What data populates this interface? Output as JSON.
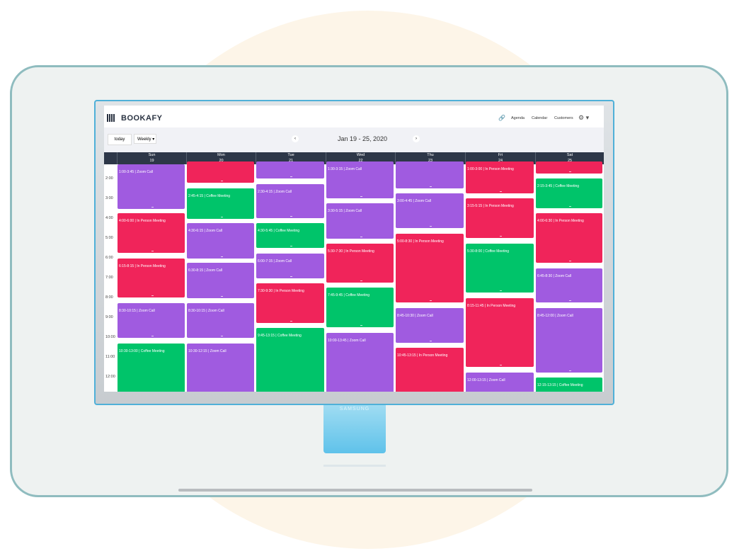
{
  "header": {
    "brand": "BOOKAFY",
    "nav": [
      "Agenda",
      "Calendar",
      "Customers"
    ]
  },
  "toolbar": {
    "today": "today",
    "view": "Weekly",
    "range": "Jan 19 - 25, 2020"
  },
  "days": [
    {
      "name": "Sun",
      "date": "19",
      "events": [
        "1:00-3:45 | Zoom Call",
        "4:00-6:00 | In Person Meeting",
        "6:15-8:15 | In Person Meeting",
        "8:30-10:15 | Zoom Call",
        "10:30-13:00 | Coffee Meeting"
      ]
    },
    {
      "name": "Mon",
      "date": "20",
      "events": [
        "2:45-4:15 | Coffee Meeting",
        "4:30-6:15 | Zoom Call",
        "6:30-8:15 | Zoom Call",
        "8:30-10:15 | Zoom Call",
        "10:30-12:15 | Zoom Call"
      ]
    },
    {
      "name": "Tue",
      "date": "21",
      "events": [
        "2:30-4:15 | Zoom Call",
        "4:30-5:45 | Coffee Meeting",
        "6:00-7:15 | Zoom Call",
        "7:30-9:30 | In Person Meeting",
        "9:45-13:15 | Coffee Meeting"
      ]
    },
    {
      "name": "Wed",
      "date": "22",
      "events": [
        "1:30-3:15 | Zoom Call",
        "3:30-5:15 | Zoom Call",
        "5:30-7:30 | In Person Meeting",
        "7:45-9:45 | Coffee Meeting",
        "10:00-13:45 | Zoom Call"
      ]
    },
    {
      "name": "Thu",
      "date": "23",
      "events": [
        "3:00-4:45 | Zoom Call",
        "5:00-8:30 | In Person Meeting",
        "8:45-10:30 | Zoom Call",
        "10:45-13:15 | In Person Meeting"
      ]
    },
    {
      "name": "Fri",
      "date": "24",
      "events": [
        "1:00-3:00 | In Person Meeting",
        "3:15-5:15 | In Person Meeting",
        "5:30-8:00 | Coffee Meeting",
        "8:15-11:45 | In Person Meeting",
        "12:00-13:15 | Zoom Call"
      ]
    },
    {
      "name": "Sat",
      "date": "25",
      "events": [
        "2:15-3:45 | Coffee Meeting",
        "4:00-6:30 | In Person Meeting",
        "6:45-8:30 | Zoom Call",
        "8:45-12:00 | Zoom Call",
        "12:15-13:15 | Coffee Meeting"
      ]
    }
  ],
  "times": [
    "2:00",
    "3:00",
    "4:00",
    "5:00",
    "6:00",
    "7:00",
    "8:00",
    "9:00",
    "10:00",
    "11:00",
    "12:00"
  ],
  "monitor": {
    "brand": "SAMSUNG"
  }
}
